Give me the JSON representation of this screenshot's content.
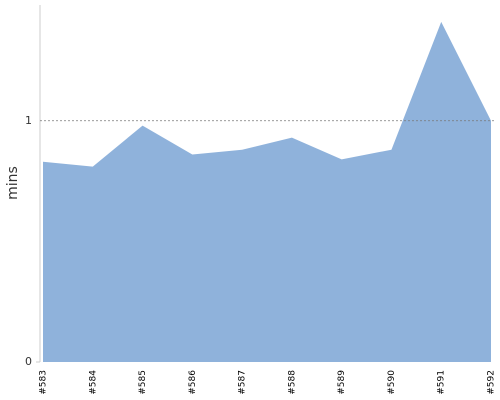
{
  "chart_data": {
    "type": "area",
    "y_label": "mins",
    "categories": [
      "#583",
      "#584",
      "#585",
      "#586",
      "#587",
      "#588",
      "#589",
      "#590",
      "#591",
      "#592"
    ],
    "values": [
      0.83,
      0.81,
      0.98,
      0.86,
      0.88,
      0.93,
      0.84,
      0.88,
      1.41,
      1.0
    ],
    "color": "#8fb2db",
    "ylim": [
      0,
      1.48
    ],
    "yticks": [
      0,
      1
    ],
    "grid": true
  }
}
